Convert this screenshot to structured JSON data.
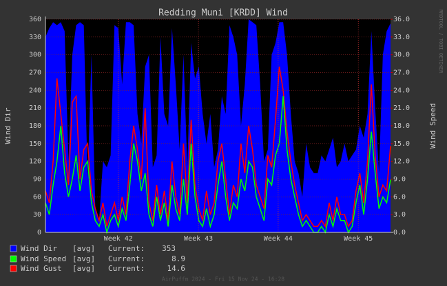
{
  "chart_data": {
    "type": "line",
    "title": "Redding Muni [KRDD] Wind",
    "y_label": "Wind Dir",
    "y2_label": "Wind Speed",
    "side_text": "RRDTOOL / TOBI OETIKER",
    "footer": "AirPuffm 2024 - Fri 15 Nov 24 - 16:28",
    "xlim": [
      0,
      90
    ],
    "xticks": [
      {
        "value": 19.0,
        "label": "Week 42"
      },
      {
        "value": 39.9,
        "label": "Week 43"
      },
      {
        "value": 60.7,
        "label": "Week 44"
      },
      {
        "value": 81.6,
        "label": "Week 45"
      }
    ],
    "ylim": [
      0,
      360
    ],
    "yticks": [
      0,
      30,
      60,
      90,
      120,
      150,
      180,
      210,
      240,
      270,
      300,
      330,
      360
    ],
    "y2lim": [
      0,
      36
    ],
    "y2ticks": [
      {
        "value": 0,
        "label": "0.0"
      },
      {
        "value": 3,
        "label": "3.0"
      },
      {
        "value": 6,
        "label": "6.0"
      },
      {
        "value": 9,
        "label": "9.0"
      },
      {
        "value": 12,
        "label": "12.0"
      },
      {
        "value": 15,
        "label": "15.0"
      },
      {
        "value": 18,
        "label": "18.0"
      },
      {
        "value": 21,
        "label": "21.0"
      },
      {
        "value": 24,
        "label": "24.0"
      },
      {
        "value": 27,
        "label": "27.0"
      },
      {
        "value": 30,
        "label": "30.0"
      },
      {
        "value": 33,
        "label": "33.0"
      },
      {
        "value": 36,
        "label": "36.0"
      }
    ],
    "grid": true,
    "series": [
      {
        "name": "Wind Dir",
        "cf": "[avg]",
        "current_label": "Current:",
        "current": 353,
        "color": "#0000ff",
        "style": "area",
        "values": [
          330,
          345,
          355,
          350,
          355,
          340,
          120,
          300,
          350,
          355,
          350,
          90,
          300,
          40,
          20,
          120,
          110,
          130,
          350,
          345,
          250,
          355,
          355,
          350,
          200,
          150,
          280,
          300,
          110,
          130,
          330,
          200,
          180,
          345,
          250,
          140,
          300,
          110,
          320,
          260,
          280,
          200,
          150,
          200,
          110,
          140,
          230,
          200,
          350,
          330,
          300,
          180,
          250,
          360,
          355,
          350,
          250,
          120,
          140,
          300,
          320,
          355,
          355,
          300,
          200,
          120,
          100,
          60,
          150,
          110,
          100,
          100,
          130,
          120,
          140,
          160,
          110,
          120,
          150,
          120,
          130,
          140,
          180,
          160,
          200,
          340,
          210,
          100,
          300,
          340,
          353
        ]
      },
      {
        "name": "Wind Gust",
        "cf": "[avg]",
        "current_label": "Current:",
        "current": 14.6,
        "color": "#ff0000",
        "style": "line",
        "axis": "y2",
        "values": [
          7,
          5,
          12,
          26,
          20,
          14,
          8,
          22,
          23,
          9,
          14,
          15,
          7,
          4,
          2,
          5,
          1,
          3,
          5,
          2,
          6,
          3,
          12,
          18,
          14,
          9,
          21,
          5,
          2,
          8,
          3,
          7,
          2,
          12,
          6,
          3,
          15,
          5,
          19,
          8,
          4,
          2,
          7,
          3,
          5,
          12,
          15,
          9,
          3,
          8,
          6,
          15,
          10,
          18,
          14,
          8,
          6,
          4,
          13,
          11,
          19,
          28,
          24,
          17,
          12,
          8,
          5,
          2,
          3,
          2,
          1,
          1,
          2,
          1,
          5,
          2,
          6,
          3,
          3,
          1,
          2,
          7,
          10,
          5,
          12,
          25,
          13,
          6,
          8,
          7,
          14.6
        ]
      },
      {
        "name": "Wind Speed",
        "cf": "[avg]",
        "current_label": "Current:",
        "current": 8.9,
        "color": "#00ff00",
        "style": "line",
        "axis": "y2",
        "values": [
          5,
          3,
          8,
          12,
          18,
          10,
          6,
          9,
          13,
          7,
          11,
          12,
          5,
          2,
          1,
          3,
          0,
          2,
          3,
          1,
          4,
          2,
          8,
          15,
          12,
          7,
          10,
          3,
          1,
          6,
          2,
          5,
          1,
          8,
          4,
          2,
          9,
          3,
          15,
          6,
          2,
          1,
          4,
          1,
          3,
          8,
          12,
          6,
          2,
          5,
          4,
          9,
          7,
          12,
          11,
          6,
          4,
          2,
          9,
          8,
          13,
          15,
          23,
          14,
          9,
          6,
          3,
          1,
          2,
          1,
          0,
          0,
          1,
          0,
          3,
          1,
          4,
          2,
          2,
          0,
          1,
          5,
          8,
          3,
          9,
          17,
          10,
          4,
          6,
          5,
          8.9
        ]
      }
    ],
    "legend_order": [
      0,
      2,
      1
    ]
  }
}
